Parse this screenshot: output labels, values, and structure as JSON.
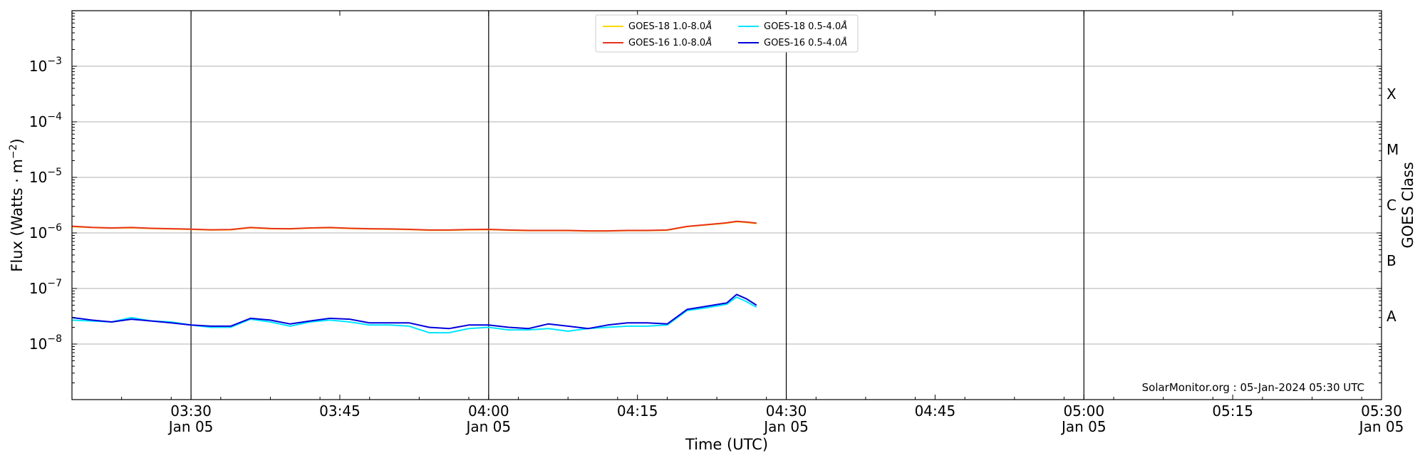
{
  "chart_data": {
    "type": "line",
    "title": "",
    "xlabel": "Time (UTC)",
    "ylabel": "Flux (Watts · m",
    "ylabel_sup": "−2",
    "ylabel_close": ")",
    "right_ylabel": "GOES Class",
    "x_scale": "time",
    "y_scale": "log",
    "xlim": [
      "2024-01-05 03:18",
      "2024-01-05 05:30"
    ],
    "ylim": [
      1e-09,
      0.01
    ],
    "grid": "horizontal at each decade",
    "legend_placement": "top-center",
    "y_ticks": [
      {
        "value": 1e-08,
        "base": "10",
        "exp": "−8"
      },
      {
        "value": 1e-07,
        "base": "10",
        "exp": "−7"
      },
      {
        "value": 1e-06,
        "base": "10",
        "exp": "−6"
      },
      {
        "value": 1e-05,
        "base": "10",
        "exp": "−5"
      },
      {
        "value": 0.0001,
        "base": "10",
        "exp": "−4"
      },
      {
        "value": 0.001,
        "base": "10",
        "exp": "−3"
      }
    ],
    "x_ticks": [
      {
        "time": "03:30",
        "date": "Jan 05"
      },
      {
        "time": "03:45",
        "date": ""
      },
      {
        "time": "04:00",
        "date": "Jan 05"
      },
      {
        "time": "04:15",
        "date": ""
      },
      {
        "time": "04:30",
        "date": "Jan 05"
      },
      {
        "time": "04:45",
        "date": ""
      },
      {
        "time": "05:00",
        "date": "Jan 05"
      },
      {
        "time": "05:15",
        "date": ""
      },
      {
        "time": "05:30",
        "date": "Jan 05"
      }
    ],
    "vertical_lines": [
      "03:30",
      "04:00",
      "04:30",
      "05:00"
    ],
    "goes_classes": [
      {
        "label": "X",
        "value": 0.000316
      },
      {
        "label": "M",
        "value": 3.16e-05
      },
      {
        "label": "C",
        "value": 3.16e-06
      },
      {
        "label": "B",
        "value": 3.16e-07
      },
      {
        "label": "A",
        "value": 3.16e-08
      }
    ],
    "x": [
      "03:18",
      "03:20",
      "03:22",
      "03:24",
      "03:26",
      "03:28",
      "03:30",
      "03:32",
      "03:34",
      "03:36",
      "03:38",
      "03:40",
      "03:42",
      "03:44",
      "03:46",
      "03:48",
      "03:50",
      "03:52",
      "03:54",
      "03:56",
      "03:58",
      "04:00",
      "04:02",
      "04:04",
      "04:06",
      "04:08",
      "04:10",
      "04:12",
      "04:14",
      "04:16",
      "04:18",
      "04:20",
      "04:22",
      "04:24",
      "04:25",
      "04:26",
      "04:27"
    ],
    "series": [
      {
        "name": "GOES-18 1.0-8.0",
        "color": "#ffd700",
        "values": [
          1.3e-06,
          1.25e-06,
          1.22e-06,
          1.24e-06,
          1.2e-06,
          1.18e-06,
          1.16e-06,
          1.13e-06,
          1.14e-06,
          1.24e-06,
          1.19e-06,
          1.18e-06,
          1.22e-06,
          1.24e-06,
          1.2e-06,
          1.18e-06,
          1.17e-06,
          1.15e-06,
          1.12e-06,
          1.12e-06,
          1.14e-06,
          1.15e-06,
          1.12e-06,
          1.1e-06,
          1.1e-06,
          1.1e-06,
          1.08e-06,
          1.08e-06,
          1.1e-06,
          1.1e-06,
          1.12e-06,
          1.3e-06,
          1.4e-06,
          1.5e-06,
          1.6e-06,
          1.55e-06,
          1.48e-06
        ]
      },
      {
        "name": "GOES-16 1.0-8.0",
        "color": "#e8321a",
        "values": [
          1.32e-06,
          1.26e-06,
          1.23e-06,
          1.25e-06,
          1.21e-06,
          1.19e-06,
          1.17e-06,
          1.14e-06,
          1.15e-06,
          1.25e-06,
          1.2e-06,
          1.19e-06,
          1.23e-06,
          1.25e-06,
          1.21e-06,
          1.19e-06,
          1.18e-06,
          1.16e-06,
          1.13e-06,
          1.13e-06,
          1.15e-06,
          1.16e-06,
          1.13e-06,
          1.11e-06,
          1.11e-06,
          1.11e-06,
          1.09e-06,
          1.09e-06,
          1.11e-06,
          1.11e-06,
          1.13e-06,
          1.31e-06,
          1.41e-06,
          1.52e-06,
          1.62e-06,
          1.57e-06,
          1.5e-06
        ]
      },
      {
        "name": "GOES-18 0.5-4.0",
        "color": "#00e5ff",
        "values": [
          2.7e-08,
          2.6e-08,
          2.5e-08,
          3e-08,
          2.6e-08,
          2.5e-08,
          2.2e-08,
          2e-08,
          2e-08,
          2.8e-08,
          2.5e-08,
          2.1e-08,
          2.5e-08,
          2.7e-08,
          2.5e-08,
          2.2e-08,
          2.2e-08,
          2.1e-08,
          1.6e-08,
          1.6e-08,
          1.9e-08,
          2e-08,
          1.8e-08,
          1.8e-08,
          1.9e-08,
          1.7e-08,
          1.9e-08,
          2e-08,
          2.1e-08,
          2.1e-08,
          2.2e-08,
          4e-08,
          4.5e-08,
          5.2e-08,
          7e-08,
          5.8e-08,
          4.6e-08
        ]
      },
      {
        "name": "GOES-16 0.5-4.0",
        "color": "#0000dd",
        "values": [
          3e-08,
          2.7e-08,
          2.5e-08,
          2.8e-08,
          2.6e-08,
          2.4e-08,
          2.2e-08,
          2.1e-08,
          2.1e-08,
          2.9e-08,
          2.7e-08,
          2.3e-08,
          2.6e-08,
          2.9e-08,
          2.8e-08,
          2.4e-08,
          2.4e-08,
          2.4e-08,
          2e-08,
          1.9e-08,
          2.2e-08,
          2.2e-08,
          2e-08,
          1.9e-08,
          2.3e-08,
          2.1e-08,
          1.9e-08,
          2.2e-08,
          2.4e-08,
          2.4e-08,
          2.3e-08,
          4.2e-08,
          4.8e-08,
          5.5e-08,
          7.8e-08,
          6.5e-08,
          5e-08
        ]
      }
    ]
  },
  "legend": {
    "unit": "Å",
    "items": [
      {
        "label": "GOES-18 1.0-8.0",
        "color": "#ffd700"
      },
      {
        "label": "GOES-18 0.5-4.0",
        "color": "#00e5ff"
      },
      {
        "label": "GOES-16 1.0-8.0",
        "color": "#e8321a"
      },
      {
        "label": "GOES-16 0.5-4.0",
        "color": "#0000dd"
      }
    ]
  },
  "watermark": "SolarMonitor.org : 05-Jan-2024 05:30 UTC"
}
